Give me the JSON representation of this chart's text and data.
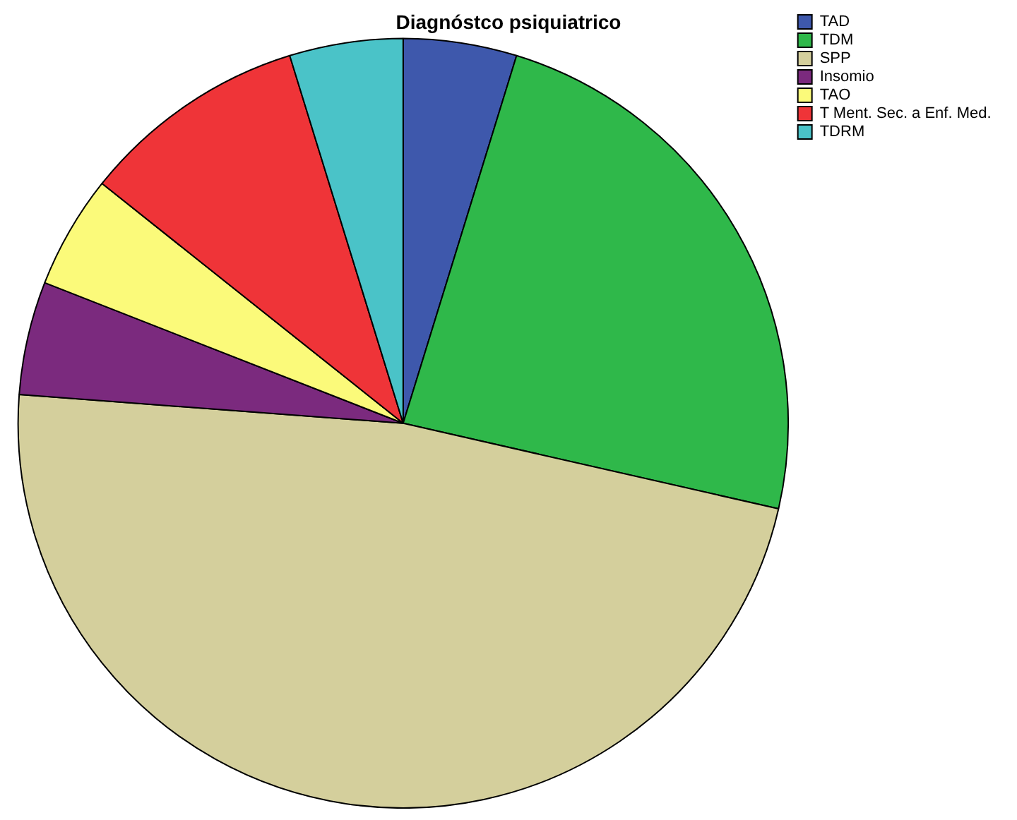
{
  "chart_data": {
    "type": "pie",
    "title": "Diagnóstco psiquiatrico",
    "categories": [
      "TAD",
      "TDM",
      "SPP",
      "Insomio",
      "TAO",
      "T Ment. Sec. a Enf. Med.",
      "TDRM"
    ],
    "values": [
      4.76,
      23.81,
      47.62,
      4.76,
      4.76,
      9.53,
      4.76
    ],
    "colors": [
      "#3e58ac",
      "#2fb84a",
      "#d4cf9c",
      "#7b2a7e",
      "#fbfa7a",
      "#ef3438",
      "#4ac3c8"
    ],
    "legend": "top right"
  }
}
